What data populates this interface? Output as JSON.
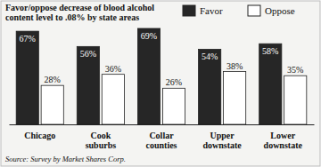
{
  "chart_data": {
    "type": "bar",
    "title": "Favor/oppose decrease of blood alcohol content level to .08% by state areas",
    "source": "Source: Survey by Market Shares Corp.",
    "categories": [
      "Chicago",
      "Cook suburbs",
      "Collar counties",
      "Upper downstate",
      "Lower downstate"
    ],
    "series": [
      {
        "name": "Favor",
        "color": "#262626",
        "values": [
          67,
          56,
          69,
          54,
          58
        ],
        "value_labels": [
          "67%",
          "56%",
          "69%",
          "54%",
          "58%"
        ]
      },
      {
        "name": "Oppose",
        "color": "#ffffff",
        "values": [
          28,
          36,
          26,
          38,
          35
        ],
        "value_labels": [
          "28%",
          "36%",
          "26%",
          "38%",
          "35%"
        ]
      }
    ],
    "data_labels": true,
    "tick_labels": false,
    "legend": "top-right",
    "grid": false
  }
}
